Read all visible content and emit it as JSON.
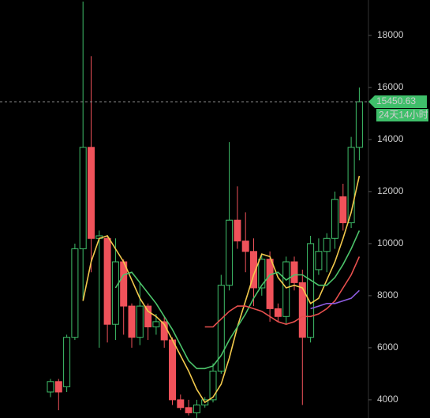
{
  "chart_data": {
    "type": "candlestick",
    "ylim": [
      3300,
      19360
    ],
    "yticks": [
      4000,
      6000,
      8000,
      10000,
      12000,
      14000,
      16000,
      18000
    ],
    "up_color": "#3fbf6a",
    "down_color": "#f0525a",
    "open": [
      4300,
      4700,
      4500,
      6400,
      9800,
      13700,
      10200,
      10200,
      6900,
      9300,
      7600,
      6400,
      7600,
      6800,
      7000,
      6300,
      4000,
      3700,
      3500,
      3800,
      4000,
      5100,
      8400,
      10900,
      10100,
      9700,
      8300,
      9400,
      7500,
      7200,
      9300,
      8500,
      6400,
      9000,
      9700,
      10200,
      11800,
      10800,
      13700
    ],
    "high": [
      4800,
      4800,
      6500,
      10000,
      19300,
      17200,
      10500,
      10300,
      10200,
      9400,
      7700,
      8500,
      7700,
      7300,
      7200,
      6400,
      4200,
      4000,
      4000,
      4100,
      5400,
      8800,
      13900,
      12200,
      11200,
      10200,
      9600,
      9700,
      7700,
      9500,
      9500,
      9000,
      10300,
      10200,
      10400,
      12000,
      12300,
      14100,
      16000
    ],
    "low": [
      4100,
      3600,
      4300,
      6300,
      7800,
      8900,
      6000,
      6200,
      6300,
      6500,
      6000,
      6100,
      6300,
      6500,
      6000,
      3800,
      3600,
      3400,
      3300,
      3700,
      3900,
      5000,
      8200,
      9800,
      8900,
      7600,
      8000,
      7000,
      7000,
      6900,
      8200,
      3800,
      6200,
      8800,
      8900,
      9800,
      10500,
      10600,
      13200
    ],
    "close": [
      4700,
      4300,
      6400,
      9800,
      13700,
      10200,
      10300,
      6900,
      9300,
      7600,
      6400,
      7600,
      6800,
      7000,
      6300,
      4000,
      3700,
      3500,
      3800,
      4000,
      5100,
      8400,
      10900,
      10100,
      9700,
      8300,
      9400,
      7500,
      7200,
      9300,
      8500,
      6400,
      10000,
      9700,
      10200,
      11700,
      10800,
      13700,
      15450.63
    ],
    "series": [
      {
        "color": "#f2c94c",
        "values": [
          null,
          null,
          null,
          null,
          7800,
          9300,
          10200,
          10300,
          9800,
          9300,
          8600,
          7900,
          7400,
          7200,
          6900,
          6300,
          5700,
          5100,
          4400,
          3900,
          4100,
          4600,
          5600,
          6800,
          7800,
          8800,
          9600,
          9500,
          8700,
          8300,
          8400,
          8300,
          7700,
          7900,
          8600,
          9300,
          10200,
          11200,
          12600
        ]
      },
      {
        "color": "#4cc36a",
        "values": [
          null,
          null,
          null,
          null,
          null,
          null,
          null,
          null,
          8300,
          8800,
          8900,
          8500,
          8100,
          7700,
          7200,
          6700,
          6100,
          5500,
          5200,
          5200,
          5300,
          5700,
          6300,
          6800,
          7300,
          7900,
          8400,
          8800,
          8900,
          8600,
          8800,
          8800,
          8600,
          8400,
          8400,
          8700,
          9200,
          9800,
          10500
        ]
      },
      {
        "color": "#e8504e",
        "values": [
          null,
          null,
          null,
          null,
          null,
          null,
          null,
          null,
          null,
          null,
          null,
          null,
          null,
          null,
          null,
          null,
          null,
          null,
          null,
          6800,
          6800,
          7100,
          7400,
          7600,
          7600,
          7500,
          7400,
          7200,
          7000,
          6900,
          7000,
          7200,
          7200,
          7300,
          7500,
          7800,
          8300,
          8800,
          9500
        ]
      },
      {
        "color": "#8e5ce0",
        "values": [
          null,
          null,
          null,
          null,
          null,
          null,
          null,
          null,
          null,
          null,
          null,
          null,
          null,
          null,
          null,
          null,
          null,
          null,
          null,
          null,
          null,
          null,
          null,
          null,
          null,
          null,
          null,
          null,
          null,
          null,
          null,
          null,
          7500,
          7600,
          7700,
          7700,
          7800,
          7900,
          8200
        ]
      }
    ],
    "current_price": 15450.63,
    "countdown": "24天14小时"
  }
}
